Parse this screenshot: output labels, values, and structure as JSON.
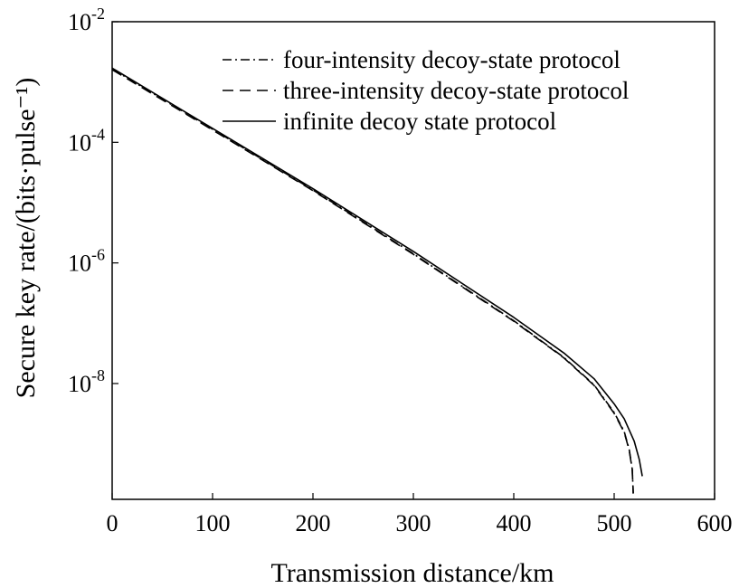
{
  "chart_data": {
    "type": "line",
    "xlabel": "Transmission distance/km",
    "ylabel": "Secure key rate/(bits·pulse⁻¹)",
    "xlim": [
      0,
      600
    ],
    "ylim": [
      1.2e-10,
      0.01
    ],
    "yscale": "log",
    "grid": false,
    "legend_position": "top-right",
    "x_ticks": [
      0,
      100,
      200,
      300,
      400,
      500,
      600
    ],
    "x_tick_labels": [
      "0",
      "100",
      "200",
      "300",
      "400",
      "500",
      "600"
    ],
    "y_ticks": [
      0.01,
      0.0001,
      1e-06,
      1e-08
    ],
    "y_tick_labels": [
      {
        "base": "10",
        "exp": "-2"
      },
      {
        "base": "10",
        "exp": "-4"
      },
      {
        "base": "10",
        "exp": "-6"
      },
      {
        "base": "10",
        "exp": "-8"
      }
    ],
    "series": [
      {
        "name": "four-intensity decoy-state protocol",
        "style": "dashdot",
        "x": [
          0,
          100,
          200,
          300,
          400,
          450,
          480,
          500,
          510,
          515,
          518,
          519
        ],
        "y": [
          0.00165,
          0.000165,
          1.62e-05,
          1.42e-06,
          1.1e-07,
          2.7e-08,
          9.5e-09,
          3.3e-09,
          1.6e-09,
          8e-10,
          3.8e-10,
          1.5e-10
        ]
      },
      {
        "name": "three-intensity decoy-state protocol",
        "style": "dashed",
        "x": [
          0,
          100,
          200,
          300,
          400,
          450,
          480,
          500,
          510,
          515,
          518,
          519
        ],
        "y": [
          0.0016,
          0.00016,
          1.58e-05,
          1.39e-06,
          1.08e-07,
          2.65e-08,
          9.3e-09,
          3.2e-09,
          1.55e-09,
          7.8e-10,
          3.7e-10,
          1.5e-10
        ]
      },
      {
        "name": "infinite decoy state protocol",
        "style": "solid",
        "x": [
          0,
          100,
          200,
          300,
          400,
          450,
          480,
          500,
          510,
          520,
          525,
          528
        ],
        "y": [
          0.0017,
          0.00017,
          1.7e-05,
          1.55e-06,
          1.25e-07,
          3.2e-08,
          1.2e-08,
          4.6e-09,
          2.6e-09,
          1.1e-09,
          5.5e-10,
          2.9e-10
        ]
      }
    ],
    "colors": {
      "line": "#000000",
      "axis": "#000000",
      "background": "#ffffff"
    }
  }
}
